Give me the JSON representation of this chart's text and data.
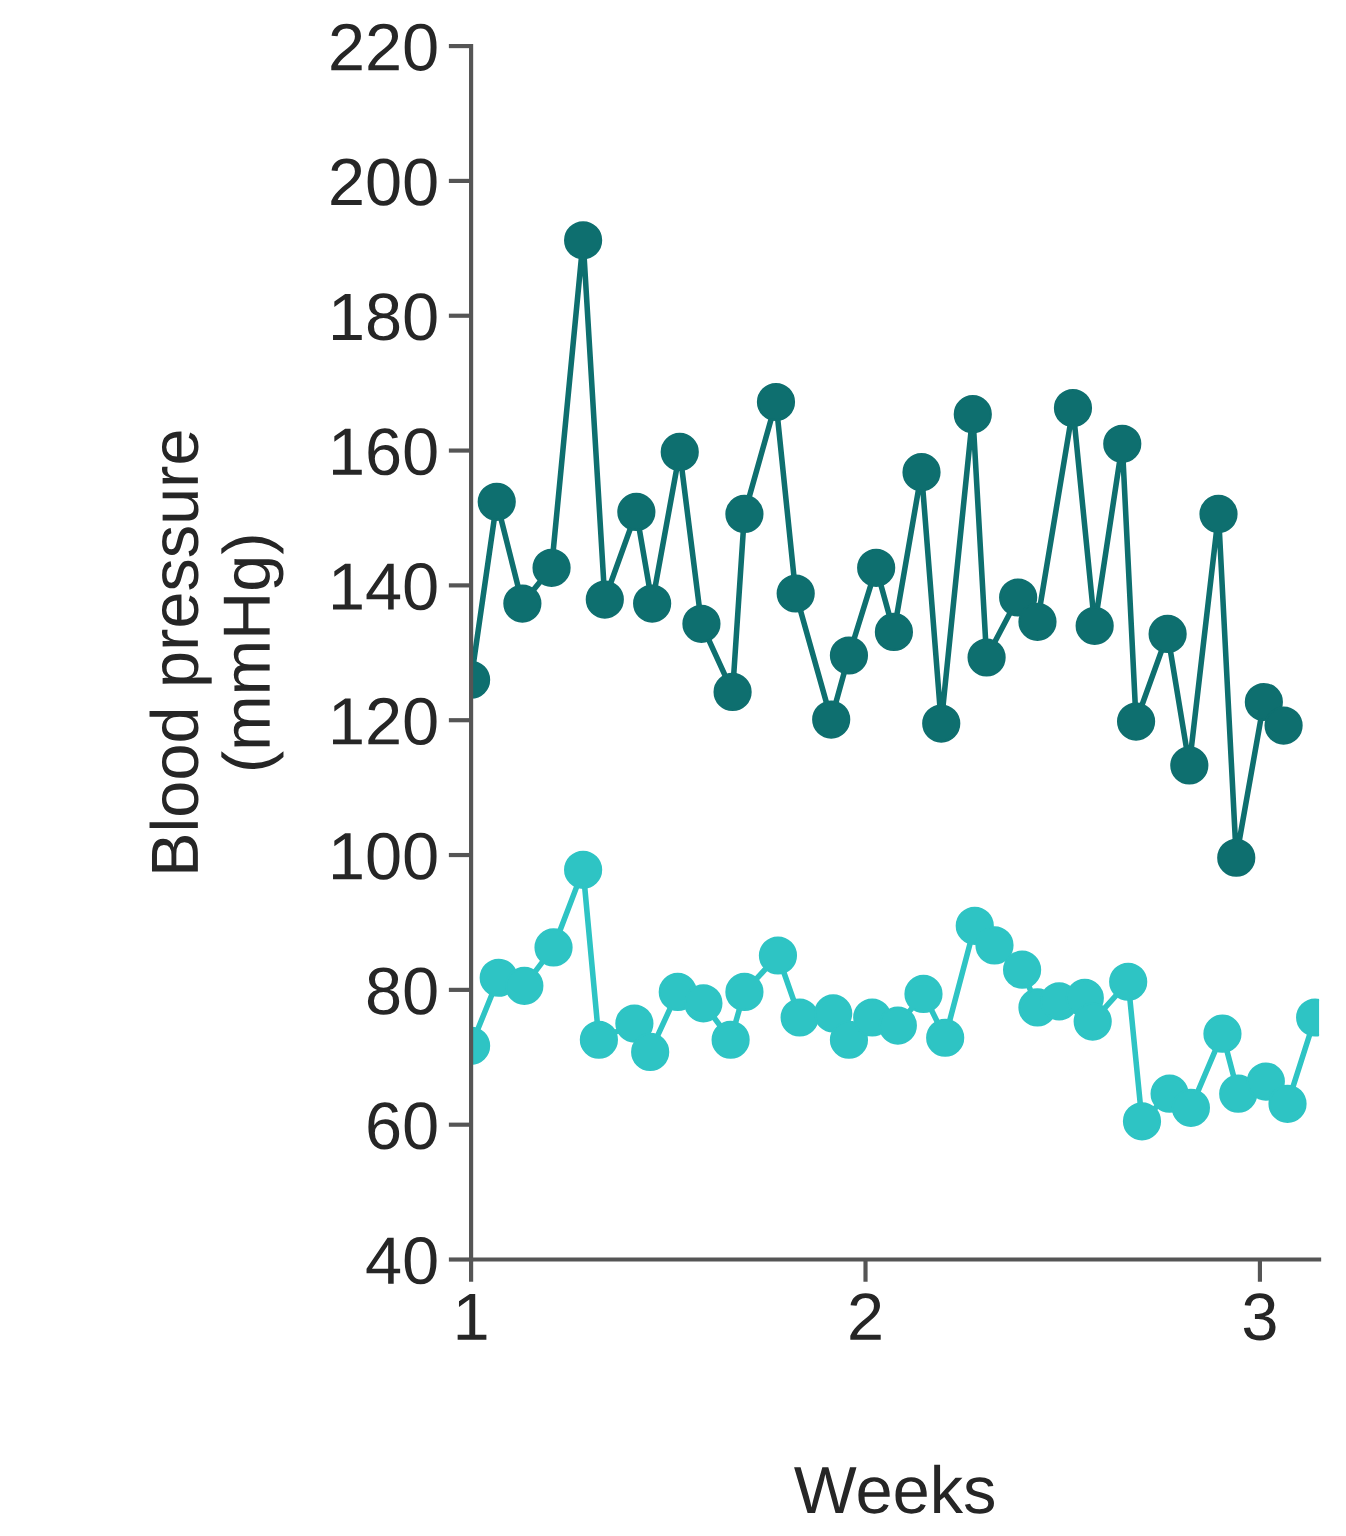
{
  "chart_data": {
    "type": "line",
    "xlabel": "Weeks",
    "ylabel": "Blood pressure\n(mmHg)",
    "xlim": [
      1,
      3.15
    ],
    "xticks": [
      1,
      2,
      3
    ],
    "ylim": [
      40,
      220
    ],
    "yticks": [
      40,
      60,
      80,
      100,
      120,
      140,
      160,
      180,
      200,
      220
    ],
    "grid": false,
    "legend": false,
    "marker": "circle",
    "line_style": "solid",
    "series": [
      {
        "color": "#0e6f6f",
        "x": [
          1.0,
          1.065,
          1.13,
          1.204,
          1.284,
          1.339,
          1.419,
          1.459,
          1.529,
          1.584,
          1.663,
          1.693,
          1.773,
          1.823,
          1.913,
          1.958,
          2.027,
          2.072,
          2.142,
          2.192,
          2.272,
          2.307,
          2.387,
          2.436,
          2.526,
          2.581,
          2.651,
          2.686,
          2.766,
          2.821,
          2.895,
          2.94,
          3.01,
          3.06
        ],
        "values": [
          126,
          152.4,
          137.3,
          142.6,
          191.2,
          137.9,
          150.9,
          137.3,
          159.8,
          134.3,
          124.2,
          150.6,
          167.2,
          138.8,
          120.1,
          129.6,
          142.6,
          133.1,
          156.8,
          119.5,
          165.4,
          129.3,
          138.2,
          134.6,
          166.3,
          134,
          161,
          119.8,
          132.8,
          113.3,
          150.6,
          99.6,
          122.7,
          119.2
        ]
      },
      {
        "color": "#2ec4c4",
        "x": [
          1.0,
          1.07,
          1.135,
          1.209,
          1.284,
          1.324,
          1.414,
          1.454,
          1.524,
          1.589,
          1.658,
          1.693,
          1.778,
          1.833,
          1.918,
          1.958,
          2.017,
          2.082,
          2.147,
          2.202,
          2.277,
          2.327,
          2.397,
          2.436,
          2.491,
          2.556,
          2.576,
          2.666,
          2.701,
          2.771,
          2.825,
          2.905,
          2.945,
          3.015,
          3.07,
          3.14
        ],
        "values": [
          71.7,
          81.8,
          80.6,
          86.3,
          97.8,
          72.6,
          75,
          70.8,
          79.7,
          78,
          72.6,
          79.7,
          85.1,
          75.9,
          76.5,
          72.6,
          75.9,
          74.7,
          79.4,
          72.9,
          89.5,
          86.6,
          83,
          77.4,
          78.3,
          78.8,
          75.3,
          81.2,
          60.5,
          64.6,
          62.5,
          73.5,
          64.6,
          66.4,
          63.1,
          75.9
        ]
      }
    ]
  }
}
